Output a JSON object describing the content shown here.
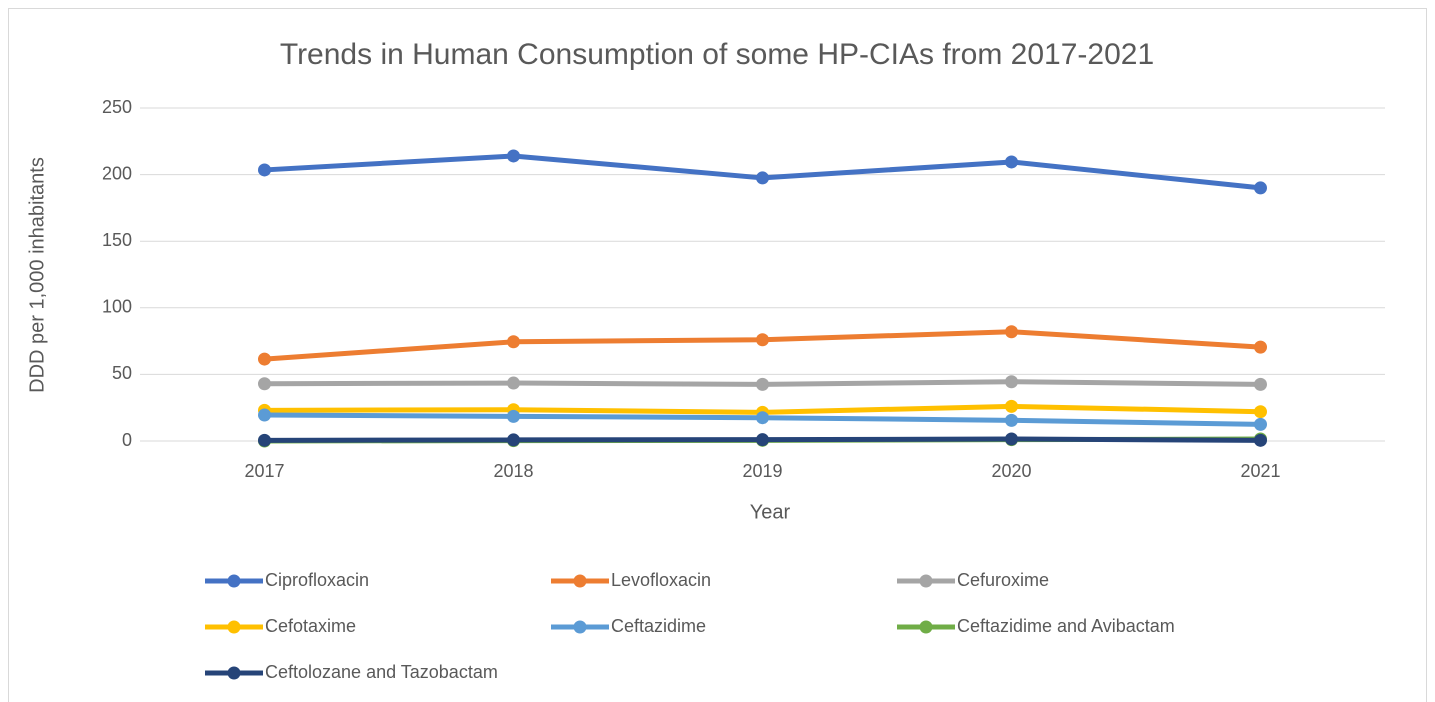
{
  "chart_data": {
    "type": "line",
    "title": "Trends in Human Consumption of some HP-CIAs from 2017-2021",
    "x_label": "Year",
    "y_label": "DDD per 1,000 inhabitants",
    "categories": [
      "2017",
      "2018",
      "2019",
      "2020",
      "2021"
    ],
    "series": [
      {
        "name": "Ciprofloxacin",
        "color": "#4472c4",
        "values": [
          203.5,
          214,
          197.5,
          209.5,
          190
        ]
      },
      {
        "name": "Levofloxacin",
        "color": "#ed7d31",
        "values": [
          61.5,
          74.5,
          76,
          82,
          70.5
        ]
      },
      {
        "name": "Cefuroxime",
        "color": "#a5a5a5",
        "values": [
          43,
          43.5,
          42.5,
          44.5,
          42.5
        ]
      },
      {
        "name": "Cefotaxime",
        "color": "#ffc000",
        "values": [
          23,
          23.5,
          21.5,
          26,
          22
        ]
      },
      {
        "name": "Ceftazidime",
        "color": "#5b9bd5",
        "values": [
          19.5,
          18.5,
          17.5,
          15.5,
          12.5
        ]
      },
      {
        "name": "Ceftazidime and Avibactam",
        "color": "#70ad47",
        "values": [
          0,
          0.3,
          0.5,
          1,
          1.5
        ]
      },
      {
        "name": "Ceftolozane and Tazobactam",
        "color": "#264478",
        "values": [
          0.5,
          0.8,
          1,
          1.5,
          0.5
        ]
      }
    ],
    "ylim": [
      0,
      250
    ],
    "yticks": [
      0,
      50,
      100,
      150,
      200,
      250
    ],
    "grid": true
  }
}
